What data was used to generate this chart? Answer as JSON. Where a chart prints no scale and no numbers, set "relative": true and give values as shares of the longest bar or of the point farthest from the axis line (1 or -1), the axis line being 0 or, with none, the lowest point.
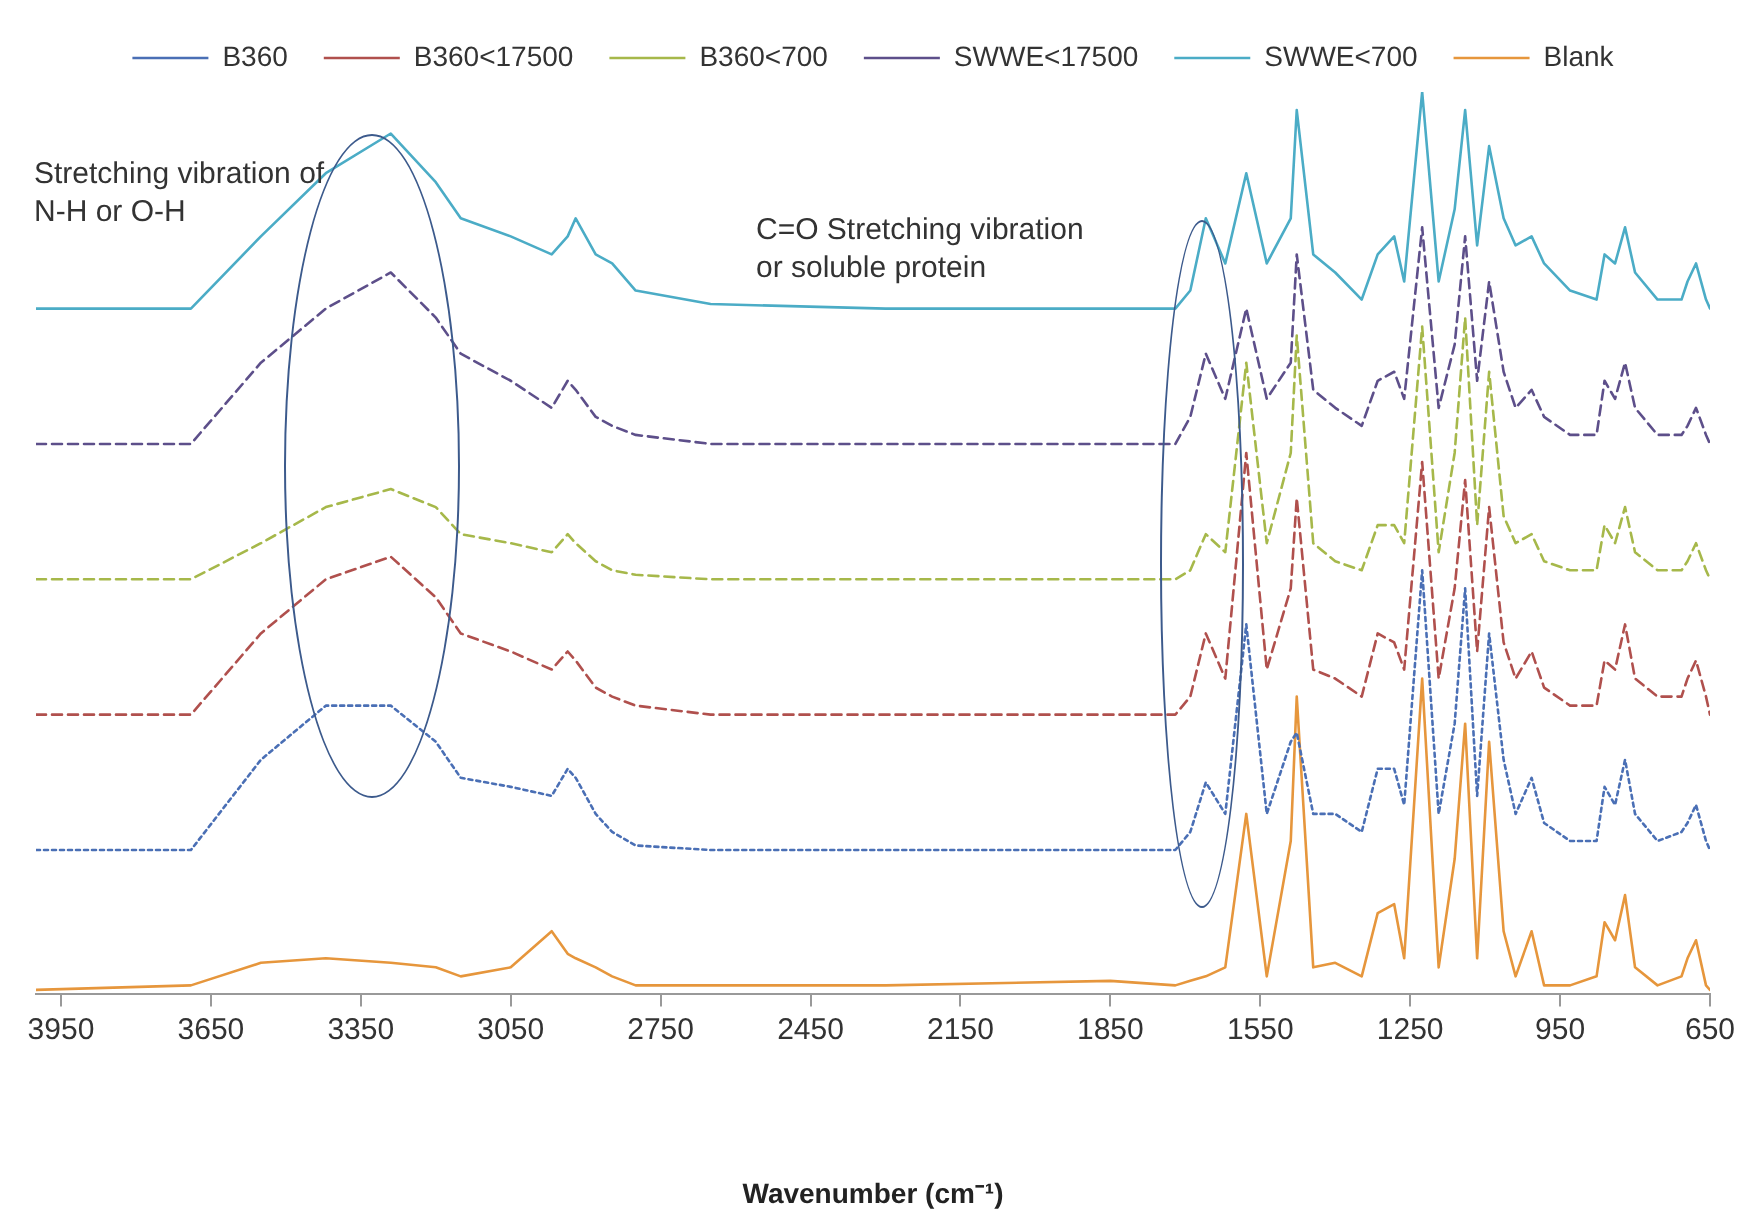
{
  "chart_data": {
    "type": "line",
    "relative": true,
    "xlabel": "Wavenumber (cm⁻¹)",
    "xlim": [
      4000,
      650
    ],
    "xticks": [
      3950,
      3650,
      3350,
      3050,
      2750,
      2450,
      2150,
      1850,
      1550,
      1250,
      950,
      650
    ],
    "grid": false,
    "legend": "top",
    "marker": "none",
    "x": [
      4000,
      3690,
      3550,
      3420,
      3290,
      3200,
      3150,
      3050,
      2968,
      2936,
      2920,
      2880,
      2847,
      2800,
      2650,
      2300,
      1850,
      1720,
      1690,
      1659,
      1620,
      1578,
      1537,
      1489,
      1477,
      1444,
      1400,
      1347,
      1315,
      1282,
      1262,
      1226,
      1193,
      1161,
      1140,
      1116,
      1092,
      1063,
      1039,
      1007,
      982,
      930,
      877,
      861,
      840,
      820,
      800,
      755,
      707,
      695,
      678,
      658,
      650
    ],
    "series": [
      {
        "name": "B360",
        "color": "#4a6fb5",
        "line_style": "dotted",
        "values": [
          0.16,
          0.16,
          0.26,
          0.32,
          0.32,
          0.28,
          0.24,
          0.23,
          0.22,
          0.25,
          0.24,
          0.2,
          0.18,
          0.165,
          0.16,
          0.16,
          0.16,
          0.16,
          0.18,
          0.235,
          0.2,
          0.41,
          0.2,
          0.28,
          0.29,
          0.2,
          0.2,
          0.18,
          0.25,
          0.25,
          0.21,
          0.47,
          0.2,
          0.3,
          0.45,
          0.22,
          0.4,
          0.26,
          0.2,
          0.24,
          0.19,
          0.17,
          0.17,
          0.23,
          0.21,
          0.26,
          0.2,
          0.17,
          0.18,
          0.19,
          0.21,
          0.17,
          0.16
        ]
      },
      {
        "name": "B360<17500",
        "color": "#b0504d",
        "line_style": "dashed",
        "values": [
          0.31,
          0.31,
          0.4,
          0.46,
          0.485,
          0.44,
          0.4,
          0.38,
          0.36,
          0.38,
          0.37,
          0.34,
          0.33,
          0.32,
          0.31,
          0.31,
          0.31,
          0.31,
          0.33,
          0.4,
          0.35,
          0.6,
          0.36,
          0.45,
          0.55,
          0.36,
          0.35,
          0.33,
          0.4,
          0.39,
          0.36,
          0.59,
          0.35,
          0.45,
          0.57,
          0.38,
          0.54,
          0.39,
          0.35,
          0.38,
          0.34,
          0.32,
          0.32,
          0.37,
          0.36,
          0.41,
          0.35,
          0.33,
          0.33,
          0.35,
          0.37,
          0.33,
          0.31
        ]
      },
      {
        "name": "B360<700",
        "color": "#a6b84a",
        "line_style": "dashed",
        "values": [
          0.46,
          0.46,
          0.5,
          0.54,
          0.56,
          0.54,
          0.51,
          0.5,
          0.49,
          0.51,
          0.5,
          0.48,
          0.47,
          0.465,
          0.46,
          0.46,
          0.46,
          0.46,
          0.47,
          0.51,
          0.49,
          0.7,
          0.5,
          0.6,
          0.73,
          0.5,
          0.48,
          0.47,
          0.52,
          0.52,
          0.5,
          0.74,
          0.49,
          0.6,
          0.75,
          0.52,
          0.69,
          0.53,
          0.5,
          0.51,
          0.48,
          0.47,
          0.47,
          0.52,
          0.5,
          0.54,
          0.49,
          0.47,
          0.47,
          0.48,
          0.5,
          0.47,
          0.46
        ]
      },
      {
        "name": "SWWE<17500",
        "color": "#5d4f8a",
        "line_style": "dashed",
        "values": [
          0.61,
          0.61,
          0.7,
          0.76,
          0.8,
          0.75,
          0.71,
          0.68,
          0.65,
          0.68,
          0.67,
          0.64,
          0.63,
          0.62,
          0.61,
          0.61,
          0.61,
          0.61,
          0.64,
          0.71,
          0.66,
          0.76,
          0.66,
          0.7,
          0.82,
          0.67,
          0.65,
          0.63,
          0.68,
          0.69,
          0.66,
          0.85,
          0.65,
          0.72,
          0.84,
          0.68,
          0.79,
          0.69,
          0.65,
          0.67,
          0.64,
          0.62,
          0.62,
          0.68,
          0.66,
          0.7,
          0.65,
          0.62,
          0.62,
          0.63,
          0.65,
          0.62,
          0.61
        ]
      },
      {
        "name": "SWWE<700",
        "color": "#4bacc6",
        "line_style": "solid",
        "values": [
          0.76,
          0.76,
          0.84,
          0.91,
          0.954,
          0.9,
          0.86,
          0.84,
          0.82,
          0.84,
          0.86,
          0.82,
          0.81,
          0.78,
          0.765,
          0.76,
          0.76,
          0.76,
          0.78,
          0.86,
          0.81,
          0.91,
          0.81,
          0.86,
          0.98,
          0.82,
          0.8,
          0.77,
          0.82,
          0.84,
          0.79,
          1.0,
          0.79,
          0.87,
          0.98,
          0.83,
          0.94,
          0.86,
          0.83,
          0.84,
          0.81,
          0.78,
          0.77,
          0.82,
          0.81,
          0.85,
          0.8,
          0.77,
          0.77,
          0.79,
          0.81,
          0.77,
          0.76
        ]
      },
      {
        "name": "Blank",
        "color": "#e6963c",
        "line_style": "solid",
        "values": [
          0.005,
          0.01,
          0.035,
          0.04,
          0.035,
          0.03,
          0.02,
          0.03,
          0.07,
          0.045,
          0.04,
          0.03,
          0.02,
          0.01,
          0.01,
          0.01,
          0.015,
          0.01,
          0.015,
          0.02,
          0.03,
          0.2,
          0.02,
          0.17,
          0.33,
          0.03,
          0.035,
          0.02,
          0.09,
          0.1,
          0.04,
          0.35,
          0.03,
          0.15,
          0.3,
          0.04,
          0.28,
          0.07,
          0.02,
          0.07,
          0.01,
          0.01,
          0.02,
          0.08,
          0.06,
          0.11,
          0.03,
          0.01,
          0.02,
          0.04,
          0.06,
          0.01,
          0.005
        ]
      }
    ],
    "annotations": [
      "Stretching vibration of N-H or O-H",
      "C=O Stretching vibration or soluble protein"
    ]
  }
}
